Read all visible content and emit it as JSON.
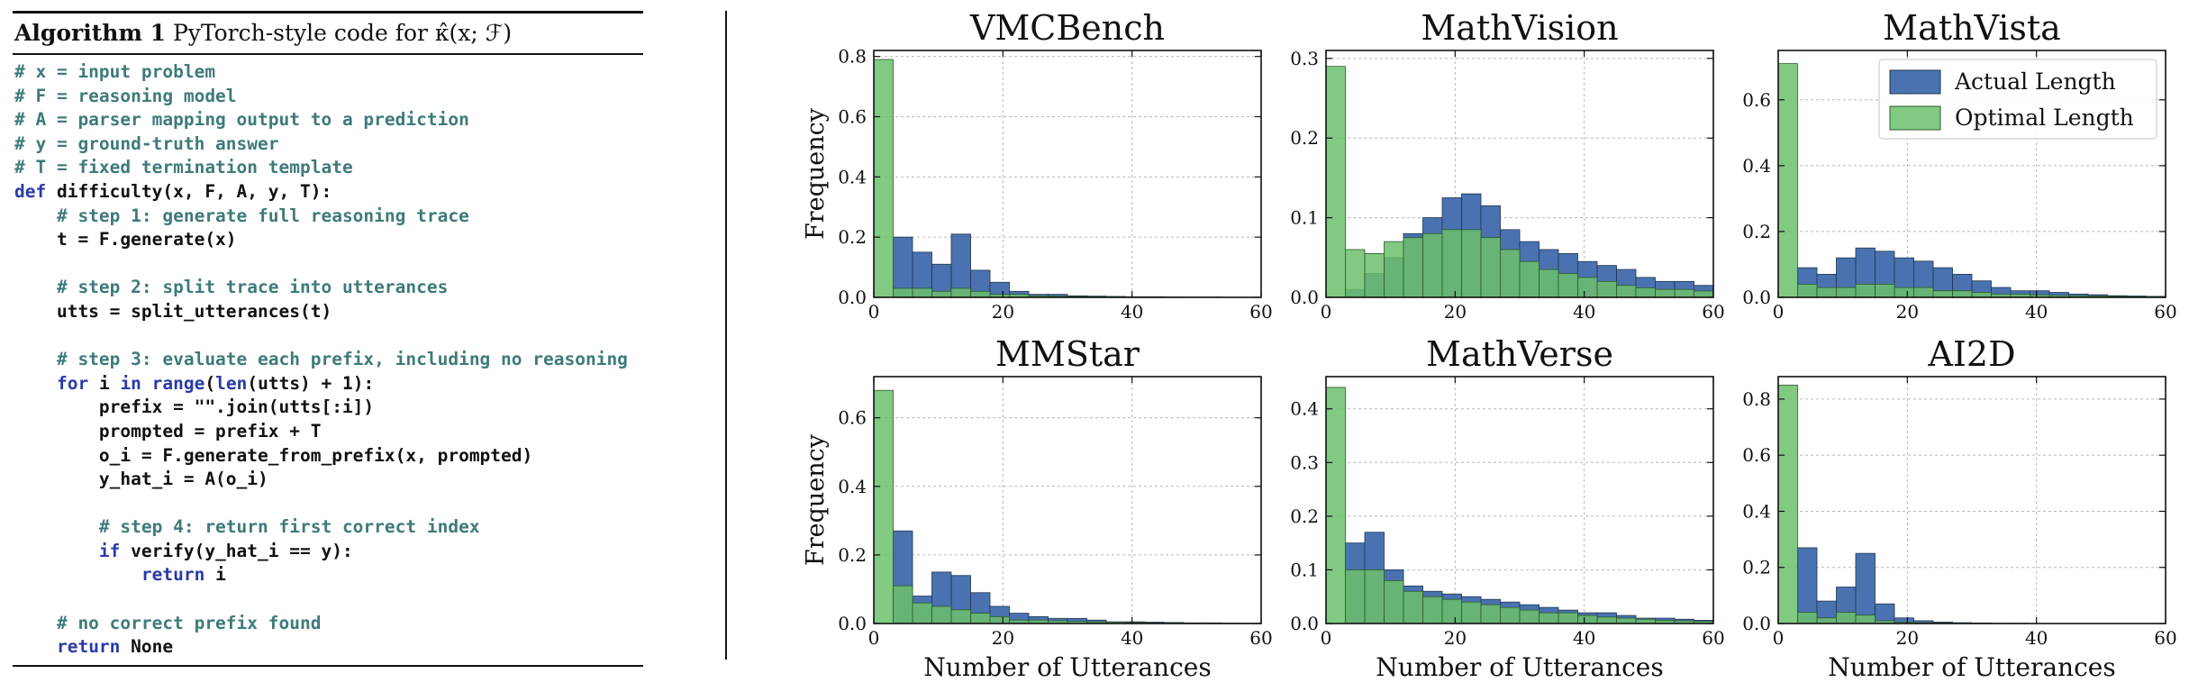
{
  "algorithm": {
    "label": "Algorithm 1",
    "title": "PyTorch-style code for κ̂(x; ℱ)",
    "lines": [
      [
        {
          "t": "# x = input problem",
          "c": "cm"
        }
      ],
      [
        {
          "t": "# F = reasoning model",
          "c": "cm"
        }
      ],
      [
        {
          "t": "# A = parser mapping output to a prediction",
          "c": "cm"
        }
      ],
      [
        {
          "t": "# y = ground-truth answer",
          "c": "cm"
        }
      ],
      [
        {
          "t": "# T = fixed termination template",
          "c": "cm"
        }
      ],
      [
        {
          "t": "def",
          "c": "kw"
        },
        {
          "t": " difficulty(x, F, A, y, T):",
          "c": "ct"
        }
      ],
      [
        {
          "t": "    # step 1: generate full reasoning trace",
          "c": "cm"
        }
      ],
      [
        {
          "t": "    t = F.generate(x)",
          "c": "ct"
        }
      ],
      [],
      [
        {
          "t": "    # step 2: split trace into utterances",
          "c": "cm"
        }
      ],
      [
        {
          "t": "    utts = split_utterances(t)",
          "c": "ct"
        }
      ],
      [],
      [
        {
          "t": "    # step 3: evaluate each prefix, including no reasoning",
          "c": "cm"
        }
      ],
      [
        {
          "t": "    ",
          "c": "ct"
        },
        {
          "t": "for",
          "c": "kw"
        },
        {
          "t": " i ",
          "c": "ct"
        },
        {
          "t": "in",
          "c": "kw"
        },
        {
          "t": " ",
          "c": "ct"
        },
        {
          "t": "range",
          "c": "kw"
        },
        {
          "t": "(",
          "c": "ct"
        },
        {
          "t": "len",
          "c": "kw"
        },
        {
          "t": "(utts) + 1):",
          "c": "ct"
        }
      ],
      [
        {
          "t": "        prefix = \"\".join(utts[:i])",
          "c": "ct"
        }
      ],
      [
        {
          "t": "        prompted = prefix + T",
          "c": "ct"
        }
      ],
      [
        {
          "t": "        o_i = F.generate_from_prefix(x, prompted)",
          "c": "ct"
        }
      ],
      [
        {
          "t": "        y_hat_i = A(o_i)",
          "c": "ct"
        }
      ],
      [],
      [
        {
          "t": "        # step 4: return first correct index",
          "c": "cm"
        }
      ],
      [
        {
          "t": "        ",
          "c": "ct"
        },
        {
          "t": "if",
          "c": "kw"
        },
        {
          "t": " verify(y_hat_i == y):",
          "c": "ct"
        }
      ],
      [
        {
          "t": "            ",
          "c": "ct"
        },
        {
          "t": "return",
          "c": "kw"
        },
        {
          "t": " i",
          "c": "ct"
        }
      ],
      [],
      [
        {
          "t": "    # no correct prefix found",
          "c": "cm"
        }
      ],
      [
        {
          "t": "    ",
          "c": "ct"
        },
        {
          "t": "return",
          "c": "kw"
        },
        {
          "t": " None",
          "c": "ct"
        }
      ]
    ]
  },
  "colors": {
    "actual": "#4a72b0",
    "optimal": "#6cc06c",
    "actual_edge": "#1f3550",
    "optimal_edge": "#2c5a2c"
  },
  "chart_data": [
    {
      "type": "bar",
      "title": "VMCBench",
      "ylabel": "Frequency",
      "xlabel": "",
      "xlim": [
        0,
        60
      ],
      "ylim": [
        0,
        0.82
      ],
      "yticks": [
        0.0,
        0.2,
        0.4,
        0.6,
        0.8
      ],
      "xticks": [
        0,
        20,
        40,
        60
      ],
      "bin_width": 3,
      "series": [
        {
          "name": "Actual Length",
          "values": [
            0.0,
            0.2,
            0.15,
            0.11,
            0.21,
            0.09,
            0.05,
            0.02,
            0.01,
            0.01,
            0.005,
            0.004,
            0.003,
            0.002,
            0.002,
            0.001,
            0.001,
            0.001,
            0.0,
            0.0
          ]
        },
        {
          "name": "Optimal Length",
          "values": [
            0.79,
            0.03,
            0.03,
            0.02,
            0.03,
            0.02,
            0.01,
            0.01,
            0.005,
            0.004,
            0.003,
            0.002,
            0.002,
            0.001,
            0.001,
            0.001,
            0.0,
            0.0,
            0.0,
            0.0
          ]
        }
      ]
    },
    {
      "type": "bar",
      "title": "MathVision",
      "ylabel": "",
      "xlabel": "",
      "xlim": [
        0,
        60
      ],
      "ylim": [
        0,
        0.31
      ],
      "yticks": [
        0.0,
        0.1,
        0.2,
        0.3
      ],
      "xticks": [
        0,
        20,
        40,
        60
      ],
      "bin_width": 3,
      "series": [
        {
          "name": "Actual Length",
          "values": [
            0.0,
            0.01,
            0.03,
            0.05,
            0.08,
            0.1,
            0.125,
            0.13,
            0.115,
            0.085,
            0.07,
            0.06,
            0.055,
            0.045,
            0.04,
            0.035,
            0.025,
            0.02,
            0.02,
            0.015
          ]
        },
        {
          "name": "Optimal Length",
          "values": [
            0.29,
            0.06,
            0.055,
            0.07,
            0.075,
            0.08,
            0.085,
            0.085,
            0.075,
            0.06,
            0.045,
            0.035,
            0.03,
            0.025,
            0.02,
            0.015,
            0.012,
            0.01,
            0.01,
            0.008
          ]
        }
      ]
    },
    {
      "type": "bar",
      "title": "MathVista",
      "ylabel": "",
      "xlabel": "",
      "xlim": [
        0,
        60
      ],
      "ylim": [
        0,
        0.75
      ],
      "yticks": [
        0.0,
        0.2,
        0.4,
        0.6
      ],
      "xticks": [
        0,
        20,
        40,
        60
      ],
      "bin_width": 3,
      "legend": "top-right",
      "series": [
        {
          "name": "Actual Length",
          "values": [
            0.0,
            0.09,
            0.07,
            0.12,
            0.15,
            0.14,
            0.12,
            0.11,
            0.09,
            0.07,
            0.05,
            0.03,
            0.02,
            0.02,
            0.015,
            0.01,
            0.008,
            0.005,
            0.004,
            0.003
          ]
        },
        {
          "name": "Optimal Length",
          "values": [
            0.71,
            0.04,
            0.03,
            0.03,
            0.04,
            0.04,
            0.03,
            0.03,
            0.02,
            0.02,
            0.015,
            0.01,
            0.01,
            0.008,
            0.006,
            0.005,
            0.004,
            0.003,
            0.002,
            0.002
          ]
        }
      ]
    },
    {
      "type": "bar",
      "title": "MMStar",
      "ylabel": "Frequency",
      "xlabel": "Number of Utterances",
      "xlim": [
        0,
        60
      ],
      "ylim": [
        0,
        0.72
      ],
      "yticks": [
        0.0,
        0.2,
        0.4,
        0.6
      ],
      "xticks": [
        0,
        20,
        40,
        60
      ],
      "bin_width": 3,
      "series": [
        {
          "name": "Actual Length",
          "values": [
            0.0,
            0.27,
            0.08,
            0.15,
            0.14,
            0.09,
            0.05,
            0.03,
            0.02,
            0.015,
            0.015,
            0.01,
            0.005,
            0.005,
            0.004,
            0.003,
            0.002,
            0.002,
            0.001,
            0.001
          ]
        },
        {
          "name": "Optimal Length",
          "values": [
            0.68,
            0.11,
            0.06,
            0.05,
            0.04,
            0.03,
            0.02,
            0.01,
            0.01,
            0.008,
            0.006,
            0.005,
            0.004,
            0.003,
            0.002,
            0.002,
            0.001,
            0.001,
            0.001,
            0.0
          ]
        }
      ]
    },
    {
      "type": "bar",
      "title": "MathVerse",
      "ylabel": "",
      "xlabel": "Number of Utterances",
      "xlim": [
        0,
        60
      ],
      "ylim": [
        0,
        0.46
      ],
      "yticks": [
        0.0,
        0.1,
        0.2,
        0.3,
        0.4
      ],
      "xticks": [
        0,
        20,
        40,
        60
      ],
      "bin_width": 3,
      "series": [
        {
          "name": "Actual Length",
          "values": [
            0.0,
            0.15,
            0.17,
            0.1,
            0.07,
            0.06,
            0.055,
            0.05,
            0.045,
            0.04,
            0.035,
            0.03,
            0.025,
            0.02,
            0.02,
            0.015,
            0.01,
            0.01,
            0.008,
            0.006
          ]
        },
        {
          "name": "Optimal Length",
          "values": [
            0.44,
            0.1,
            0.1,
            0.08,
            0.06,
            0.05,
            0.045,
            0.04,
            0.035,
            0.03,
            0.025,
            0.02,
            0.02,
            0.015,
            0.012,
            0.01,
            0.008,
            0.006,
            0.005,
            0.004
          ]
        }
      ]
    },
    {
      "type": "bar",
      "title": "AI2D",
      "ylabel": "",
      "xlabel": "Number of Utterances",
      "xlim": [
        0,
        60
      ],
      "ylim": [
        0,
        0.88
      ],
      "yticks": [
        0.0,
        0.2,
        0.4,
        0.6,
        0.8
      ],
      "xticks": [
        0,
        20,
        40,
        60
      ],
      "bin_width": 3,
      "series": [
        {
          "name": "Actual Length",
          "values": [
            0.0,
            0.27,
            0.08,
            0.13,
            0.25,
            0.07,
            0.02,
            0.01,
            0.005,
            0.003,
            0.002,
            0.001,
            0.001,
            0.0,
            0.0,
            0.0,
            0.0,
            0.0,
            0.0,
            0.0
          ]
        },
        {
          "name": "Optimal Length",
          "values": [
            0.85,
            0.04,
            0.02,
            0.04,
            0.03,
            0.01,
            0.005,
            0.003,
            0.002,
            0.001,
            0.001,
            0.0,
            0.0,
            0.0,
            0.0,
            0.0,
            0.0,
            0.0,
            0.0,
            0.0
          ]
        }
      ]
    }
  ]
}
